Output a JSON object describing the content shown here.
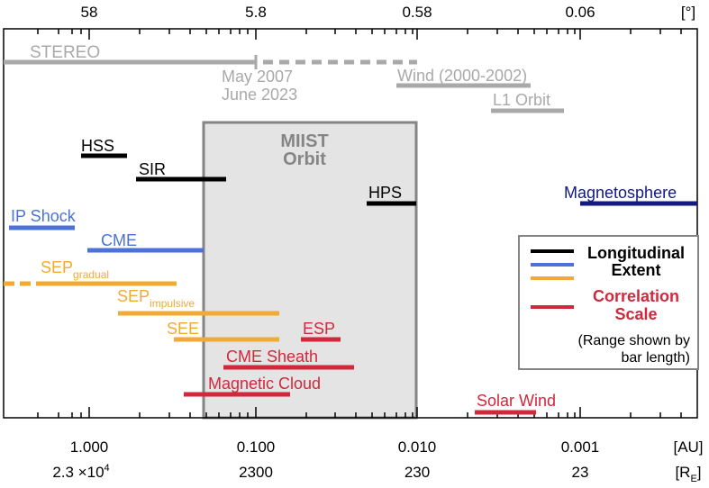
{
  "top_axis": {
    "ticks": [
      "58",
      "5.8",
      "0.58",
      "0.06"
    ],
    "unit": "[°]"
  },
  "bottom_axis": {
    "au_ticks": [
      "1.000",
      "0.100",
      "0.010",
      "0.001"
    ],
    "au_unit": "[AU]",
    "re_ticks": [
      "2.3 ×10",
      "2300",
      "230",
      "23"
    ],
    "re_first_exponent": "4",
    "re_unit_base": "[R",
    "re_unit_sub": "E",
    "re_unit_close": "]"
  },
  "mission": {
    "stereo": "STEREO",
    "stereo_date_1": "May 2007",
    "stereo_date_2": "June 2023",
    "wind": "Wind (2000-2002)",
    "l1": "L1 Orbit"
  },
  "miist_box": {
    "line1": "MIIST",
    "line2": "Orbit"
  },
  "phenomena": {
    "hss": "HSS",
    "sir": "SIR",
    "hps": "HPS",
    "magnetosphere": "Magnetosphere",
    "ip_shock": "IP Shock",
    "cme": "CME",
    "sep_gradual_base": "SEP",
    "sep_gradual_sub": "gradual",
    "sep_impulsive_base": "SEP",
    "sep_impulsive_sub": "impulsive",
    "see": "SEE",
    "esp": "ESP",
    "cme_sheath": "CME Sheath",
    "magnetic_cloud": "Magnetic Cloud",
    "solar_wind": "Solar Wind"
  },
  "legend": {
    "longitudinal": "Longitudinal",
    "extent": "Extent",
    "correlation": "Correlation",
    "scale": "Scale",
    "note_line1": "(Range shown by",
    "note_line2": "bar length)"
  },
  "colors": {
    "black": "#000000",
    "blue": "#4a72d8",
    "navy": "#13197e",
    "orange": "#f1aa34",
    "red": "#d1283c",
    "gray": "#a9a9a9",
    "box_fill": "#e4e4e4",
    "box_stroke": "#858585"
  }
}
